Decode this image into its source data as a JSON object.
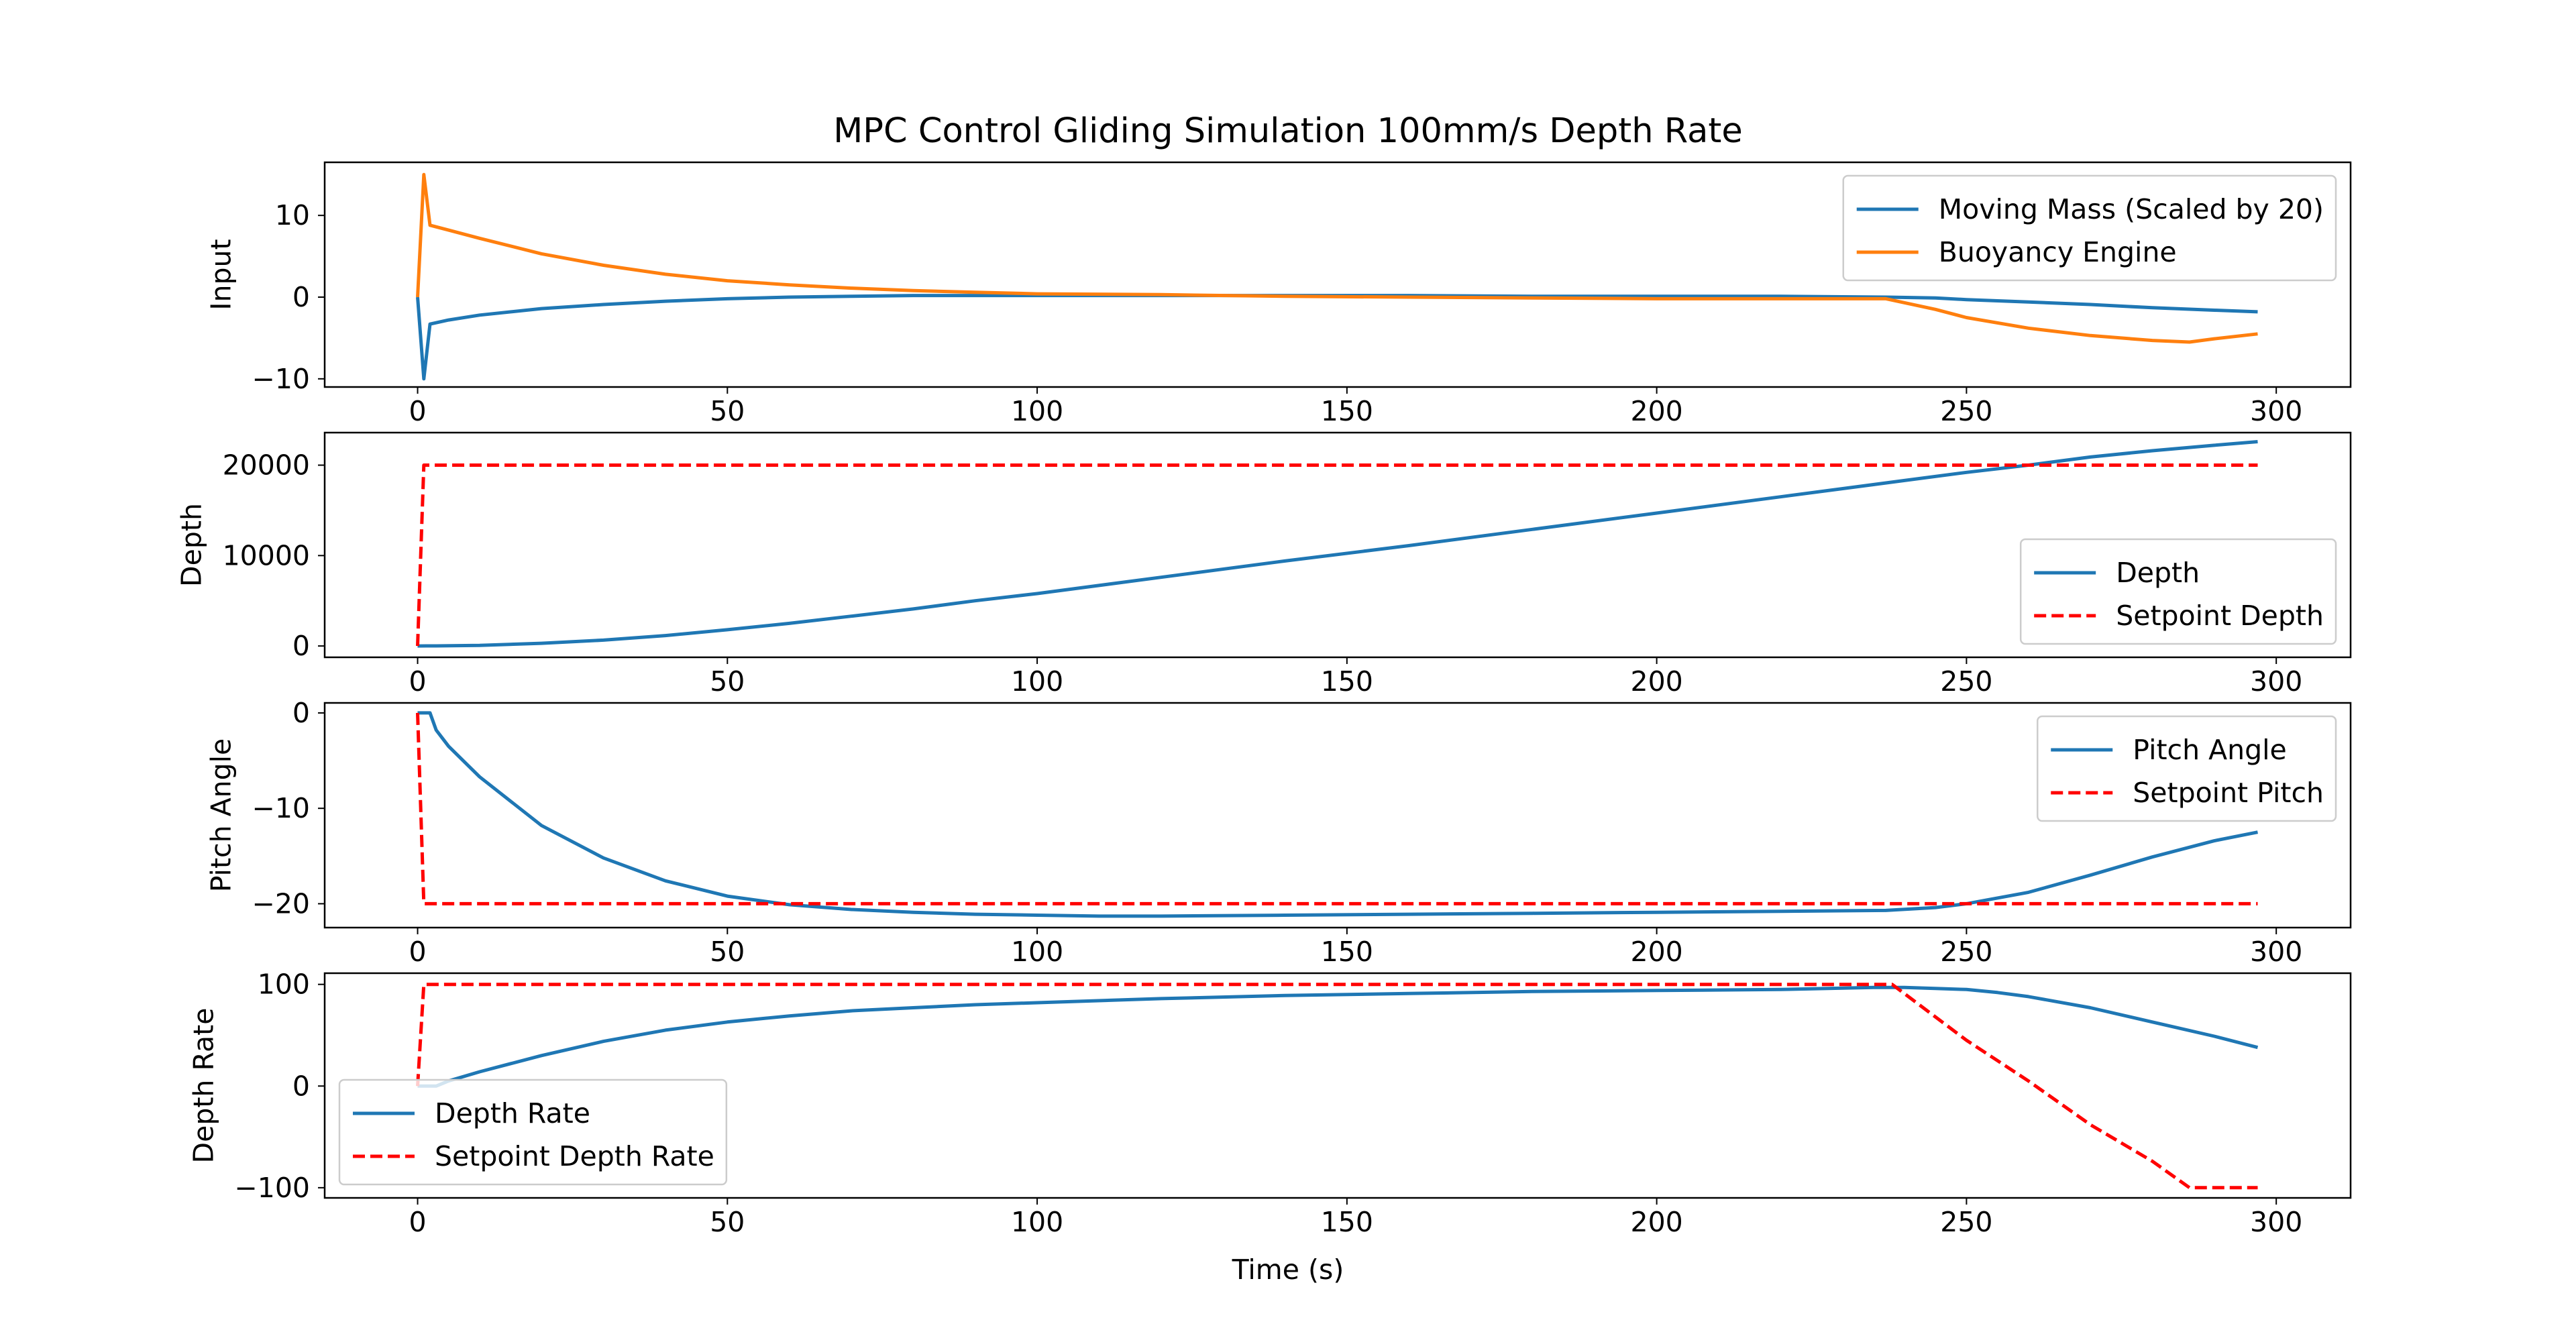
{
  "title": "MPC Control Gliding Simulation 100mm/s Depth Rate",
  "xlabel": "Time (s)",
  "colors": {
    "blue": "#1f77b4",
    "orange": "#ff7f0e",
    "red": "#ff0000",
    "axes": "#000000",
    "legend_border": "#cccccc"
  },
  "chart_data": [
    {
      "type": "line",
      "ylabel": "Input",
      "xlim": [
        -15,
        312
      ],
      "ylim": [
        -11,
        16.5
      ],
      "xticks": [
        0,
        50,
        100,
        150,
        200,
        250,
        300
      ],
      "yticks": [
        -10,
        0,
        10
      ],
      "ytick_labels": [
        "−10",
        "0",
        "10"
      ],
      "legend_position": "upper-right",
      "series": [
        {
          "name": "Moving Mass (Scaled by 20)",
          "color": "blue",
          "style": "solid",
          "x": [
            0,
            1,
            2,
            5,
            10,
            20,
            30,
            40,
            50,
            60,
            70,
            80,
            90,
            100,
            120,
            140,
            160,
            180,
            200,
            220,
            237,
            245,
            250,
            260,
            270,
            280,
            290,
            297
          ],
          "y": [
            0,
            -10,
            -3.3,
            -2.8,
            -2.2,
            -1.4,
            -0.9,
            -0.5,
            -0.2,
            0,
            0.1,
            0.2,
            0.2,
            0.2,
            0.2,
            0.2,
            0.2,
            0.1,
            0.1,
            0.1,
            0,
            -0.1,
            -0.3,
            -0.6,
            -0.9,
            -1.3,
            -1.6,
            -1.8
          ]
        },
        {
          "name": "Buoyancy Engine",
          "color": "orange",
          "style": "solid",
          "x": [
            0,
            1,
            2,
            5,
            10,
            20,
            30,
            40,
            50,
            60,
            70,
            80,
            90,
            100,
            120,
            140,
            160,
            180,
            200,
            220,
            237,
            245,
            250,
            260,
            270,
            280,
            286,
            290,
            297
          ],
          "y": [
            0,
            15,
            8.8,
            8.2,
            7.2,
            5.3,
            3.9,
            2.8,
            2,
            1.5,
            1.1,
            0.8,
            0.6,
            0.4,
            0.3,
            0.1,
            0,
            -0.1,
            -0.2,
            -0.2,
            -0.2,
            -1.5,
            -2.5,
            -3.8,
            -4.7,
            -5.3,
            -5.5,
            -5.1,
            -4.5
          ]
        }
      ]
    },
    {
      "type": "line",
      "ylabel": "Depth",
      "xlim": [
        -15,
        312
      ],
      "ylim": [
        -1250,
        23600
      ],
      "xticks": [
        0,
        50,
        100,
        150,
        200,
        250,
        300
      ],
      "yticks": [
        0,
        10000,
        20000
      ],
      "ytick_labels": [
        "0",
        "10000",
        "20000"
      ],
      "legend_position": "lower-right",
      "series": [
        {
          "name": "Depth",
          "color": "blue",
          "style": "solid",
          "x": [
            0,
            3,
            10,
            20,
            30,
            40,
            50,
            60,
            70,
            80,
            90,
            100,
            120,
            140,
            160,
            180,
            200,
            220,
            240,
            250,
            260,
            270,
            280,
            290,
            297
          ],
          "y": [
            0,
            10,
            60,
            300,
            650,
            1150,
            1800,
            2500,
            3300,
            4100,
            5000,
            5800,
            7600,
            9400,
            11100,
            12900,
            14700,
            16500,
            18300,
            19200,
            20000,
            20900,
            21600,
            22200,
            22600
          ]
        },
        {
          "name": "Setpoint Depth",
          "color": "red",
          "style": "dashed",
          "x": [
            0,
            1,
            297
          ],
          "y": [
            0,
            20000,
            20000
          ]
        }
      ]
    },
    {
      "type": "line",
      "ylabel": "Pitch Angle",
      "xlim": [
        -15,
        312
      ],
      "ylim": [
        -22.5,
        1.05
      ],
      "xticks": [
        0,
        50,
        100,
        150,
        200,
        250,
        300
      ],
      "yticks": [
        -20,
        -10,
        0
      ],
      "ytick_labels": [
        "−20",
        "−10",
        "0"
      ],
      "legend_position": "upper-right",
      "series": [
        {
          "name": "Pitch Angle",
          "color": "blue",
          "style": "solid",
          "x": [
            0,
            2,
            3,
            5,
            10,
            20,
            30,
            40,
            50,
            60,
            70,
            80,
            90,
            100,
            110,
            120,
            140,
            160,
            180,
            200,
            220,
            237,
            245,
            250,
            260,
            270,
            280,
            290,
            297
          ],
          "y": [
            0,
            0,
            -1.8,
            -3.5,
            -6.7,
            -11.8,
            -15.2,
            -17.6,
            -19.2,
            -20.1,
            -20.6,
            -20.9,
            -21.1,
            -21.2,
            -21.3,
            -21.3,
            -21.2,
            -21.1,
            -21,
            -20.9,
            -20.8,
            -20.7,
            -20.4,
            -20,
            -18.8,
            -17,
            -15.1,
            -13.4,
            -12.5
          ]
        },
        {
          "name": "Setpoint Pitch",
          "color": "red",
          "style": "dashed",
          "x": [
            0,
            1,
            297
          ],
          "y": [
            0,
            -20,
            -20
          ]
        }
      ]
    },
    {
      "type": "line",
      "ylabel": "Depth Rate",
      "xlim": [
        -15,
        312
      ],
      "ylim": [
        -110,
        111
      ],
      "xticks": [
        0,
        50,
        100,
        150,
        200,
        250,
        300
      ],
      "yticks": [
        -100,
        0,
        100
      ],
      "ytick_labels": [
        "−100",
        "0",
        "100"
      ],
      "legend_position": "lower-left",
      "series": [
        {
          "name": "Depth Rate",
          "color": "blue",
          "style": "solid",
          "x": [
            0,
            3,
            5,
            10,
            20,
            30,
            40,
            50,
            60,
            70,
            80,
            90,
            100,
            120,
            140,
            160,
            180,
            200,
            220,
            235,
            240,
            245,
            250,
            255,
            260,
            270,
            280,
            290,
            297
          ],
          "y": [
            0,
            0,
            5,
            14,
            30,
            44,
            55,
            63,
            69,
            74,
            77,
            80,
            82,
            86,
            89,
            91,
            93,
            94,
            95,
            97,
            97,
            96,
            95,
            92,
            88,
            77,
            63,
            49,
            38
          ]
        },
        {
          "name": "Setpoint Depth Rate",
          "color": "red",
          "style": "dashed",
          "x": [
            0,
            1,
            238,
            250,
            260,
            270,
            280,
            286,
            297
          ],
          "y": [
            0,
            100,
            100,
            45,
            5,
            -38,
            -74,
            -100,
            -100
          ]
        }
      ]
    }
  ]
}
